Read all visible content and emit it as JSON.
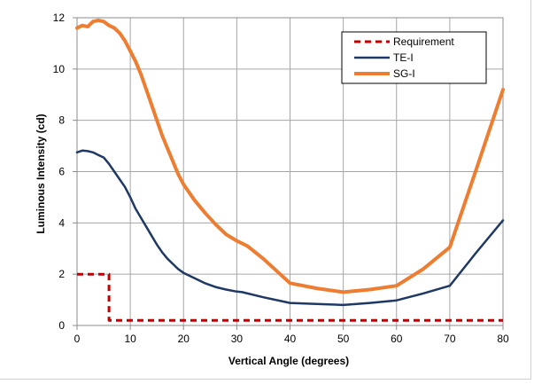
{
  "chart_data": {
    "type": "line",
    "title": "",
    "xlabel": "Vertical Angle (degrees)",
    "ylabel": "Luminous Intensity (cd)",
    "xlim": [
      0,
      80
    ],
    "ylim": [
      0,
      12
    ],
    "xticks": [
      0,
      10,
      20,
      30,
      40,
      50,
      60,
      70,
      80
    ],
    "yticks": [
      0,
      2,
      4,
      6,
      8,
      10,
      12
    ],
    "grid": true,
    "legend_position": "top-right",
    "series": [
      {
        "name": "Requirement",
        "color": "#c00000",
        "dash": true,
        "x": [
          0,
          6,
          6,
          80
        ],
        "y": [
          2,
          2,
          0.2,
          0.2
        ]
      },
      {
        "name": "TE-I",
        "color": "#1f3864",
        "dash": false,
        "x": [
          0,
          1,
          2,
          3,
          4,
          5,
          6,
          7,
          8,
          9,
          10,
          11,
          12,
          13,
          14,
          15,
          16,
          17,
          18,
          19,
          20,
          22,
          24,
          26,
          28,
          30,
          31,
          35,
          40,
          45,
          50,
          55,
          60,
          65,
          70,
          75,
          80
        ],
        "y": [
          6.75,
          6.82,
          6.8,
          6.75,
          6.65,
          6.55,
          6.3,
          6.0,
          5.7,
          5.4,
          5.0,
          4.55,
          4.2,
          3.85,
          3.5,
          3.15,
          2.85,
          2.6,
          2.4,
          2.2,
          2.05,
          1.85,
          1.65,
          1.5,
          1.4,
          1.32,
          1.3,
          1.1,
          0.88,
          0.84,
          0.8,
          0.88,
          0.98,
          1.25,
          1.55,
          2.85,
          4.1
        ]
      },
      {
        "name": "SG-I",
        "color": "#ed7d31",
        "dash": false,
        "x": [
          0,
          1,
          2,
          3,
          4,
          5,
          6,
          7,
          8,
          9,
          10,
          11,
          12,
          13,
          14,
          15,
          16,
          17,
          18,
          19,
          20,
          22,
          24,
          26,
          28,
          30,
          32,
          35,
          40,
          45,
          50,
          55,
          60,
          65,
          70,
          75,
          80
        ],
        "y": [
          11.6,
          11.7,
          11.65,
          11.85,
          11.9,
          11.85,
          11.7,
          11.6,
          11.4,
          11.1,
          10.7,
          10.3,
          9.8,
          9.2,
          8.6,
          8.0,
          7.4,
          6.9,
          6.4,
          5.9,
          5.5,
          4.9,
          4.4,
          3.95,
          3.55,
          3.3,
          3.1,
          2.6,
          1.65,
          1.45,
          1.3,
          1.4,
          1.55,
          2.2,
          3.05,
          6.1,
          9.2
        ]
      }
    ]
  }
}
